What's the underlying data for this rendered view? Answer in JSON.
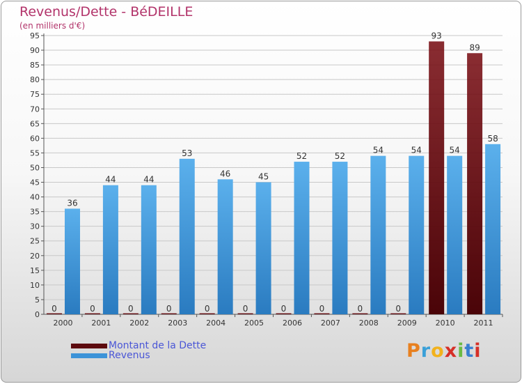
{
  "title": "Revenus/Dette - BéDEILLE",
  "subtitle": "(en milliers d'€)",
  "logo": [
    "P",
    "r",
    "o",
    "x",
    "i",
    "t",
    "i"
  ],
  "logo_colors": [
    "#e8801f",
    "#3aa0d8",
    "#f2b21c",
    "#d62f27",
    "#6bbb44",
    "#3a7fd0",
    "#d62f27"
  ],
  "colors": {
    "debt": "#7a1016",
    "revenue": "#3d93d8"
  },
  "legend": [
    {
      "label": "Montant de la Dette",
      "color": "#5c0a0e"
    },
    {
      "label": "Revenus",
      "color": "#3d93d8"
    }
  ],
  "chart_data": {
    "type": "bar",
    "title": "Revenus/Dette - BéDEILLE",
    "ylabel": "(en milliers d'€)",
    "categories": [
      "2000",
      "2001",
      "2002",
      "2003",
      "2004",
      "2005",
      "2006",
      "2007",
      "2008",
      "2009",
      "2010",
      "2011"
    ],
    "ylim": [
      0,
      95
    ],
    "ytick_step": 5,
    "grid": true,
    "series": [
      {
        "name": "Montant de la Dette",
        "values": [
          0,
          0,
          0,
          0,
          0,
          0,
          0,
          0,
          0,
          0,
          93,
          89
        ]
      },
      {
        "name": "Revenus",
        "values": [
          36,
          44,
          44,
          53,
          46,
          45,
          52,
          52,
          54,
          54,
          54,
          58
        ]
      }
    ]
  }
}
